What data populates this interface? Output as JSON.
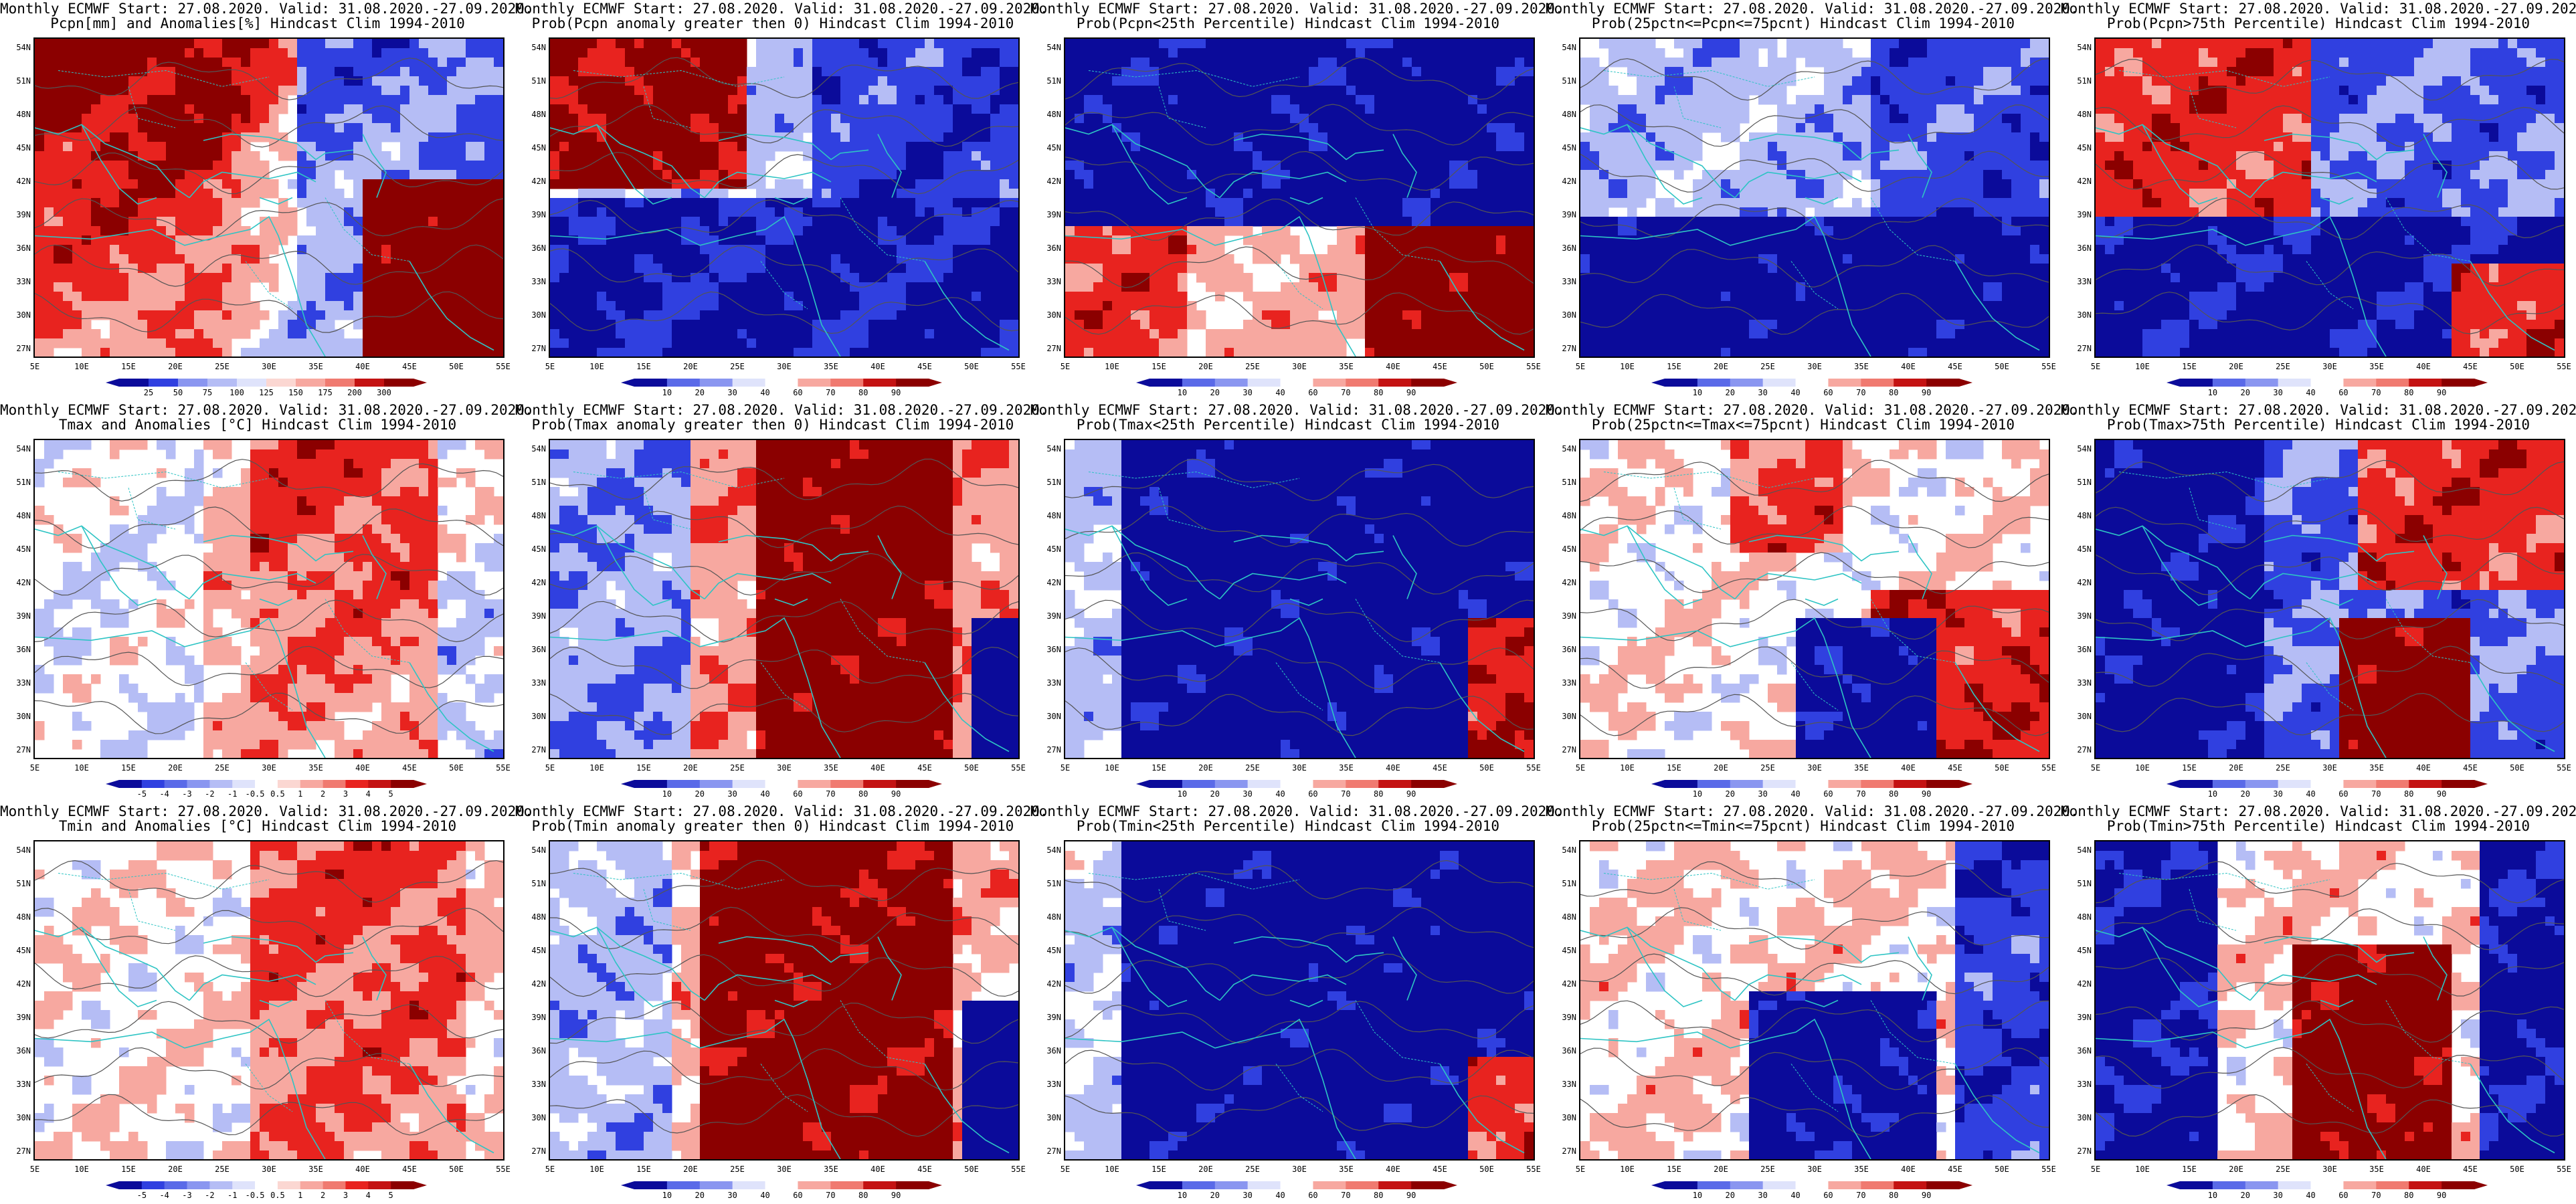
{
  "header_line": "Monthly ECMWF Start: 27.08.2020. Valid: 31.08.2020.-27.09.2020.",
  "lat_labels": [
    "54N",
    "51N",
    "48N",
    "45N",
    "42N",
    "39N",
    "36N",
    "33N",
    "30N",
    "27N"
  ],
  "lon_labels": [
    "5E",
    "10E",
    "15E",
    "20E",
    "25E",
    "30E",
    "35E",
    "40E",
    "45E",
    "50E",
    "55E"
  ],
  "colors": {
    "coast": "#2ec4c4",
    "contour": "#555555",
    "frame": "#000000",
    "dark_red": "#8b0000",
    "red": "#e8231f",
    "light_red": "#f7a8a0",
    "white": "#ffffff",
    "light_blue": "#b5bdf5",
    "blue": "#3040e0",
    "dark_blue": "#0b0b9a"
  },
  "legend_anomaly_pcpn": [
    "25",
    "50",
    "75",
    "100",
    "125",
    "150",
    "175",
    "200",
    "300"
  ],
  "legend_anomaly_temp": [
    "-5",
    "-4",
    "-3",
    "-2",
    "-1",
    "-0.5",
    "0.5",
    "1",
    "2",
    "3",
    "4",
    "5"
  ],
  "legend_prob": [
    "10",
    "20",
    "30",
    "40",
    "60",
    "70",
    "80",
    "90"
  ],
  "panels": [
    {
      "title": "Pcpn[mm] and Anomalies[%] Hindcast Clim 1994-2010",
      "legend": "pcpn",
      "pattern": "pcpn_anom"
    },
    {
      "title": "Prob(Pcpn anomaly greater then 0) Hindcast Clim 1994-2010",
      "legend": "prob",
      "pattern": "pcpn_pos"
    },
    {
      "title": "Prob(Pcpn<25th Percentile) Hindcast Clim 1994-2010",
      "legend": "prob",
      "pattern": "pcpn_low"
    },
    {
      "title": "Prob(25pctn<=Pcpn<=75pcnt) Hindcast Clim 1994-2010",
      "legend": "prob",
      "pattern": "pcpn_mid"
    },
    {
      "title": "Prob(Pcpn>75th Percentile) Hindcast Clim 1994-2010",
      "legend": "prob",
      "pattern": "pcpn_high"
    },
    {
      "title": "Tmax and Anomalies [°C] Hindcast Clim 1994-2010",
      "legend": "temp",
      "pattern": "tmax_anom"
    },
    {
      "title": "Prob(Tmax anomaly greater then 0) Hindcast Clim 1994-2010",
      "legend": "prob",
      "pattern": "tmax_pos"
    },
    {
      "title": "Prob(Tmax<25th Percentile) Hindcast Clim 1994-2010",
      "legend": "prob",
      "pattern": "tmax_low"
    },
    {
      "title": "Prob(25pctn<=Tmax<=75pcnt) Hindcast Clim 1994-2010",
      "legend": "prob",
      "pattern": "tmax_mid"
    },
    {
      "title": "Prob(Tmax>75th Percentile) Hindcast Clim 1994-2010",
      "legend": "prob",
      "pattern": "tmax_high"
    },
    {
      "title": "Tmin and Anomalies [°C] Hindcast Clim 1994-2010",
      "legend": "temp",
      "pattern": "tmin_anom"
    },
    {
      "title": "Prob(Tmin anomaly greater then 0) Hindcast Clim 1994-2010",
      "legend": "prob",
      "pattern": "tmin_pos"
    },
    {
      "title": "Prob(Tmin<25th Percentile) Hindcast Clim 1994-2010",
      "legend": "prob",
      "pattern": "tmin_low"
    },
    {
      "title": "Prob(25pctn<=Tmin<=75pcnt) Hindcast Clim 1994-2010",
      "legend": "prob",
      "pattern": "tmin_mid"
    },
    {
      "title": "Prob(Tmin>75th Percentile) Hindcast Clim 1994-2010",
      "legend": "prob",
      "pattern": "tmin_high"
    }
  ]
}
